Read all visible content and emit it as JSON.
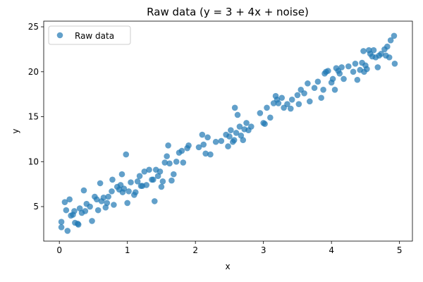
{
  "chart_data": {
    "type": "scatter",
    "title": "Raw data (y = 3 + 4x + noise)",
    "x_label": "x",
    "y_label": "y",
    "xlim": [
      -0.23,
      5.19
    ],
    "ylim": [
      1.16,
      25.63
    ],
    "xticks": [
      0,
      1,
      2,
      3,
      4,
      5
    ],
    "yticks": [
      5,
      10,
      15,
      20,
      25
    ],
    "legend": "upper left",
    "grid": false,
    "series": [
      {
        "name": "Raw data",
        "color": "#1f77b4",
        "x": [
          0.03,
          0.03,
          0.08,
          0.1,
          0.12,
          0.15,
          0.17,
          0.2,
          0.22,
          0.23,
          0.27,
          0.28,
          0.3,
          0.33,
          0.36,
          0.38,
          0.4,
          0.45,
          0.48,
          0.52,
          0.55,
          0.57,
          0.6,
          0.62,
          0.65,
          0.68,
          0.7,
          0.72,
          0.77,
          0.78,
          0.8,
          0.85,
          0.88,
          0.9,
          0.92,
          0.93,
          0.95,
          0.98,
          1.0,
          1.02,
          1.05,
          1.1,
          1.12,
          1.15,
          1.18,
          1.2,
          1.22,
          1.25,
          1.28,
          1.32,
          1.36,
          1.38,
          1.4,
          1.42,
          1.45,
          1.48,
          1.5,
          1.52,
          1.55,
          1.58,
          1.6,
          1.62,
          1.65,
          1.68,
          1.72,
          1.76,
          1.8,
          1.82,
          1.88,
          1.9,
          2.05,
          2.1,
          2.12,
          2.15,
          2.18,
          2.22,
          2.3,
          2.38,
          2.45,
          2.48,
          2.5,
          2.52,
          2.55,
          2.57,
          2.58,
          2.6,
          2.62,
          2.65,
          2.67,
          2.7,
          2.72,
          2.75,
          2.78,
          2.82,
          2.95,
          3.0,
          3.02,
          3.05,
          3.1,
          3.15,
          3.18,
          3.2,
          3.22,
          3.27,
          3.3,
          3.35,
          3.4,
          3.42,
          3.5,
          3.52,
          3.55,
          3.6,
          3.65,
          3.68,
          3.75,
          3.8,
          3.85,
          3.88,
          3.9,
          3.92,
          3.95,
          4.0,
          4.02,
          4.05,
          4.07,
          4.1,
          4.12,
          4.15,
          4.18,
          4.25,
          4.32,
          4.35,
          4.38,
          4.42,
          4.45,
          4.47,
          4.48,
          4.5,
          4.52,
          4.55,
          4.57,
          4.6,
          4.62,
          4.65,
          4.68,
          4.7,
          4.73,
          4.78,
          4.8,
          4.82,
          4.85,
          4.87,
          4.92,
          4.93
        ],
        "values": [
          3.3,
          2.7,
          5.5,
          4.6,
          2.3,
          5.8,
          4.0,
          4.1,
          4.5,
          3.2,
          3.1,
          3.0,
          4.8,
          4.3,
          6.8,
          4.5,
          5.3,
          5.0,
          3.4,
          6.1,
          5.8,
          4.6,
          7.6,
          5.6,
          6.0,
          4.9,
          5.4,
          6.1,
          6.7,
          8.0,
          5.2,
          7.2,
          6.9,
          7.4,
          8.6,
          6.6,
          7.0,
          10.8,
          5.4,
          6.7,
          7.7,
          6.3,
          6.6,
          7.8,
          8.4,
          7.3,
          7.3,
          8.9,
          7.4,
          9.1,
          8.0,
          8.0,
          5.6,
          9.1,
          8.4,
          8.9,
          7.2,
          7.8,
          9.9,
          10.6,
          11.8,
          9.8,
          7.9,
          8.6,
          10.0,
          11.0,
          11.2,
          9.9,
          11.5,
          11.8,
          11.6,
          13.0,
          11.9,
          10.9,
          12.7,
          10.8,
          12.2,
          12.3,
          13.0,
          11.7,
          12.8,
          13.5,
          12.2,
          12.4,
          16.0,
          13.2,
          15.2,
          13.9,
          12.9,
          12.4,
          13.6,
          14.3,
          13.5,
          13.9,
          15.4,
          14.3,
          14.2,
          16.0,
          14.9,
          16.5,
          17.3,
          16.9,
          16.5,
          17.1,
          16.0,
          16.4,
          15.9,
          16.9,
          17.4,
          16.4,
          18.0,
          17.6,
          18.7,
          16.7,
          18.2,
          18.9,
          17.1,
          18.0,
          19.8,
          20.0,
          20.1,
          18.8,
          19.2,
          18.0,
          20.4,
          20.1,
          19.8,
          20.5,
          19.2,
          20.6,
          20.0,
          20.9,
          19.1,
          20.2,
          21.0,
          22.3,
          20.0,
          20.7,
          20.3,
          22.4,
          22.0,
          21.7,
          22.4,
          21.6,
          20.5,
          21.8,
          22.0,
          22.5,
          21.8,
          22.8,
          21.6,
          23.5,
          24.0,
          20.9
        ]
      }
    ]
  }
}
